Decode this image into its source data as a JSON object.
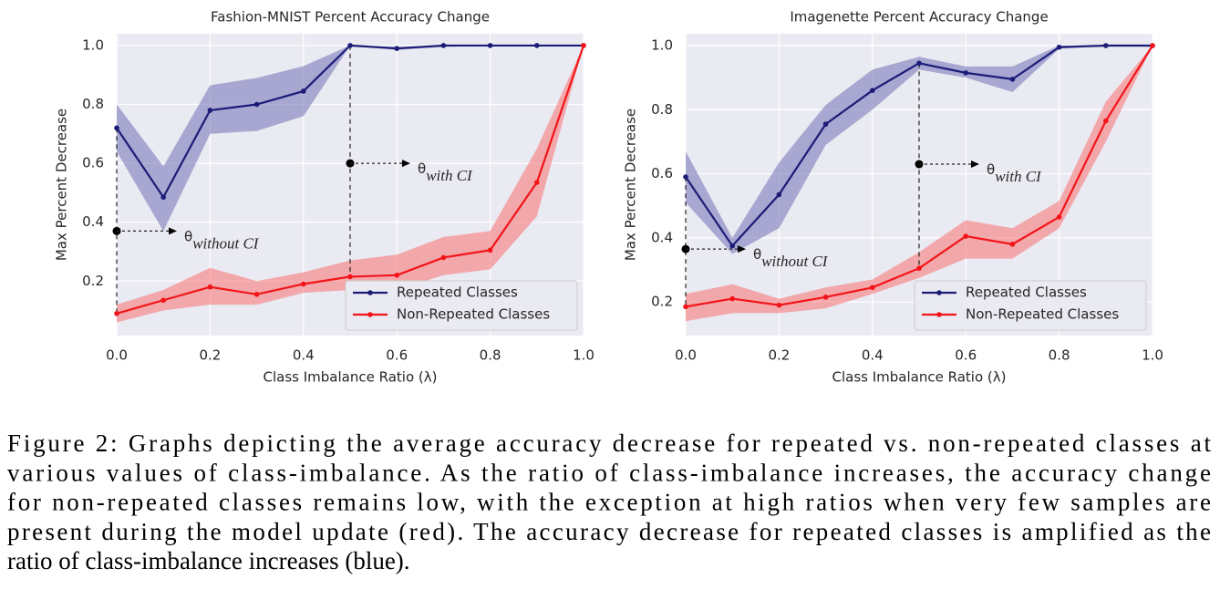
{
  "chart_data": [
    {
      "type": "line",
      "title": "Fashion-MNIST Percent Accuracy Change",
      "x_label": "Class Imbalance Ratio (λ)",
      "y_label": "Max Percent Decrease",
      "x": [
        0,
        0.1,
        0.2,
        0.3,
        0.4,
        0.5,
        0.6,
        0.7,
        0.8,
        0.9,
        1.0
      ],
      "xlim": [
        0,
        1
      ],
      "ylim": [
        0.015,
        1.04
      ],
      "xticks": [
        {
          "value": 0,
          "label": "0.0"
        },
        0.2,
        0.4,
        0.6,
        0.8,
        {
          "value": 1,
          "label": "1.0"
        }
      ],
      "yticks": [
        0.2,
        0.4,
        0.6,
        0.8,
        {
          "value": 1,
          "label": "1.0"
        }
      ],
      "grid": true,
      "legend": "lower right",
      "series": [
        {
          "name": "Repeated Classes",
          "color": "#1c1c78",
          "band_color": "#7a7abb",
          "values": [
            0.72,
            0.485,
            0.78,
            0.8,
            0.845,
            1.0,
            0.99,
            1.0,
            1.0,
            1.0,
            1.0
          ],
          "lower": [
            0.64,
            0.37,
            0.7,
            0.71,
            0.76,
            1.0,
            0.985,
            0.995,
            1.0,
            1.0,
            1.0
          ],
          "upper": [
            0.8,
            0.59,
            0.865,
            0.89,
            0.93,
            1.0,
            0.995,
            1.0,
            1.0,
            1.0,
            1.0
          ]
        },
        {
          "name": "Non-Repeated Classes",
          "color": "#f21418",
          "band_color": "#f77a7c",
          "values": [
            0.09,
            0.135,
            0.18,
            0.155,
            0.19,
            0.215,
            0.22,
            0.28,
            0.305,
            0.535,
            1.0
          ],
          "lower": [
            0.06,
            0.1,
            0.12,
            0.12,
            0.16,
            0.17,
            0.17,
            0.22,
            0.24,
            0.42,
            1.0
          ],
          "upper": [
            0.12,
            0.17,
            0.245,
            0.2,
            0.23,
            0.27,
            0.29,
            0.35,
            0.37,
            0.65,
            1.0
          ]
        }
      ],
      "annotations": [
        {
          "index": 0,
          "y": 0.37,
          "symbol": "θ",
          "subscript": "without CI"
        },
        {
          "index": 5,
          "y": 0.6,
          "symbol": "θ",
          "subscript": "with CI"
        }
      ]
    },
    {
      "type": "line",
      "title": "Imagenette Percent Accuracy Change",
      "x_label": "Class Imbalance Ratio (λ)",
      "y_label": "Max Percent Decrease",
      "x": [
        0,
        0.1,
        0.2,
        0.3,
        0.4,
        0.5,
        0.6,
        0.7,
        0.8,
        0.9,
        1.0
      ],
      "xlim": [
        0,
        1
      ],
      "ylim": [
        0.095,
        1.037
      ],
      "xticks": [
        {
          "value": 0,
          "label": "0.0"
        },
        0.2,
        0.4,
        0.6,
        0.8,
        {
          "value": 1,
          "label": "1.0"
        }
      ],
      "yticks": [
        0.2,
        0.4,
        0.6,
        0.8,
        {
          "value": 1,
          "label": "1.0"
        }
      ],
      "grid": true,
      "legend": "lower right",
      "series": [
        {
          "name": "Repeated Classes",
          "color": "#1c1c78",
          "band_color": "#7a7abb",
          "values": [
            0.59,
            0.375,
            0.535,
            0.755,
            0.86,
            0.945,
            0.915,
            0.895,
            0.995,
            1.0,
            1.0
          ],
          "lower": [
            0.51,
            0.35,
            0.43,
            0.69,
            0.8,
            0.925,
            0.9,
            0.855,
            0.99,
            1.0,
            1.0
          ],
          "upper": [
            0.67,
            0.4,
            0.635,
            0.815,
            0.925,
            0.965,
            0.935,
            0.935,
            1.0,
            1.0,
            1.0
          ]
        },
        {
          "name": "Non-Repeated Classes",
          "color": "#f21418",
          "band_color": "#f77a7c",
          "values": [
            0.185,
            0.21,
            0.19,
            0.215,
            0.245,
            0.305,
            0.405,
            0.38,
            0.465,
            0.765,
            1.0
          ],
          "lower": [
            0.14,
            0.165,
            0.165,
            0.18,
            0.225,
            0.275,
            0.335,
            0.335,
            0.43,
            0.7,
            1.0
          ],
          "upper": [
            0.225,
            0.255,
            0.21,
            0.245,
            0.27,
            0.355,
            0.455,
            0.43,
            0.515,
            0.825,
            1.0
          ]
        }
      ],
      "annotations": [
        {
          "index": 0,
          "y": 0.365,
          "symbol": "θ",
          "subscript": "without CI"
        },
        {
          "index": 5,
          "y": 0.63,
          "symbol": "θ",
          "subscript": "with CI"
        }
      ]
    }
  ],
  "caption": {
    "lines": [
      "Figure 2: Graphs depicting the average accuracy decrease for repeated vs. non-repeated classes at",
      "various values of class-imbalance. As the ratio of class-imbalance increases, the accuracy change",
      "for non-repeated classes remains low, with the exception at high ratios when very few samples are",
      "present during the model update (red). The accuracy decrease for repeated classes is amplified as the",
      "ratio of class-imbalance increases (blue)."
    ]
  }
}
